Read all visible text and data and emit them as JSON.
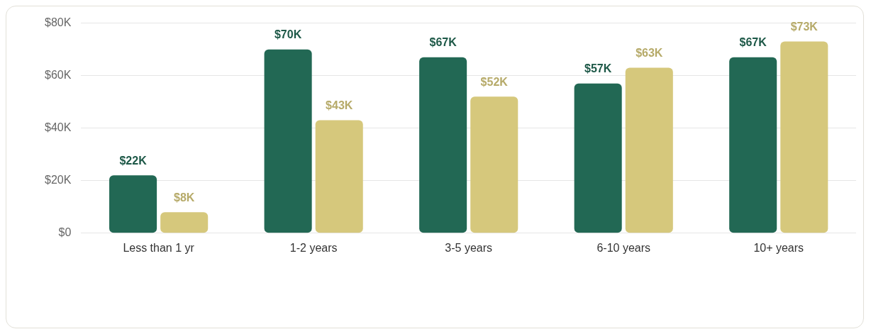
{
  "chart_data": {
    "type": "bar",
    "categories": [
      "Less than 1 yr",
      "1-2 years",
      "3-5 years",
      "6-10 years",
      "10+ years"
    ],
    "series": [
      {
        "color": "#226854",
        "values": [
          22000,
          70000,
          67000,
          57000,
          67000
        ],
        "value_labels": [
          "$22K",
          "$70K",
          "$67K",
          "$57K",
          "$67K"
        ]
      },
      {
        "color": "#d6c87c",
        "values": [
          8000,
          43000,
          52000,
          63000,
          73000
        ],
        "value_labels": [
          "$8K",
          "$43K",
          "$52K",
          "$63K",
          "$73K"
        ]
      }
    ],
    "ylim": [
      0,
      80000
    ],
    "yticks": [
      {
        "value": 0,
        "label": "$0"
      },
      {
        "value": 20000,
        "label": "$20K"
      },
      {
        "value": 40000,
        "label": "$40K"
      },
      {
        "value": 60000,
        "label": "$60K"
      },
      {
        "value": 80000,
        "label": "$80K"
      }
    ],
    "grid": "y",
    "legend": false
  }
}
